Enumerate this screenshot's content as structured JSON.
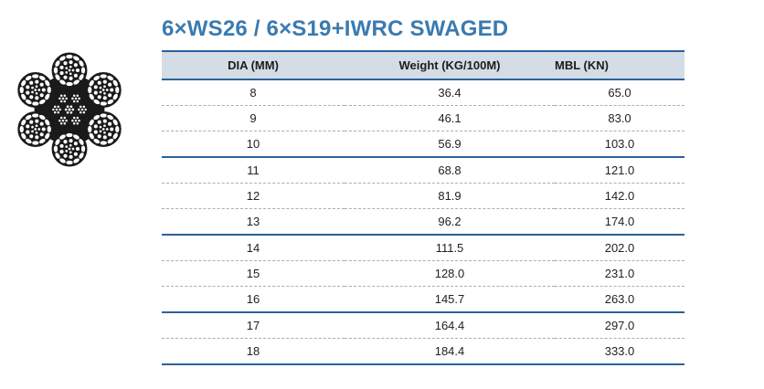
{
  "title": "6×WS26 / 6×S19+IWRC SWAGED",
  "table": {
    "headers": [
      "DIA (MM)",
      "Weight (KG/100M)",
      "MBL (KN)"
    ],
    "rows": [
      [
        "8",
        "36.4",
        "65.0"
      ],
      [
        "9",
        "46.1",
        "83.0"
      ],
      [
        "10",
        "56.9",
        "103.0"
      ],
      [
        "11",
        "68.8",
        "121.0"
      ],
      [
        "12",
        "81.9",
        "142.0"
      ],
      [
        "13",
        "96.2",
        "174.0"
      ],
      [
        "14",
        "111.5",
        "202.0"
      ],
      [
        "15",
        "128.0",
        "231.0"
      ],
      [
        "16",
        "145.7",
        "263.0"
      ],
      [
        "17",
        "164.4",
        "297.0"
      ],
      [
        "18",
        "184.4",
        "333.0"
      ]
    ]
  },
  "colors": {
    "title": "#3a7ab0",
    "rule": "#2b6299",
    "header_bg": "#d4dde6"
  },
  "icon": "wire-rope-cross-section-icon"
}
